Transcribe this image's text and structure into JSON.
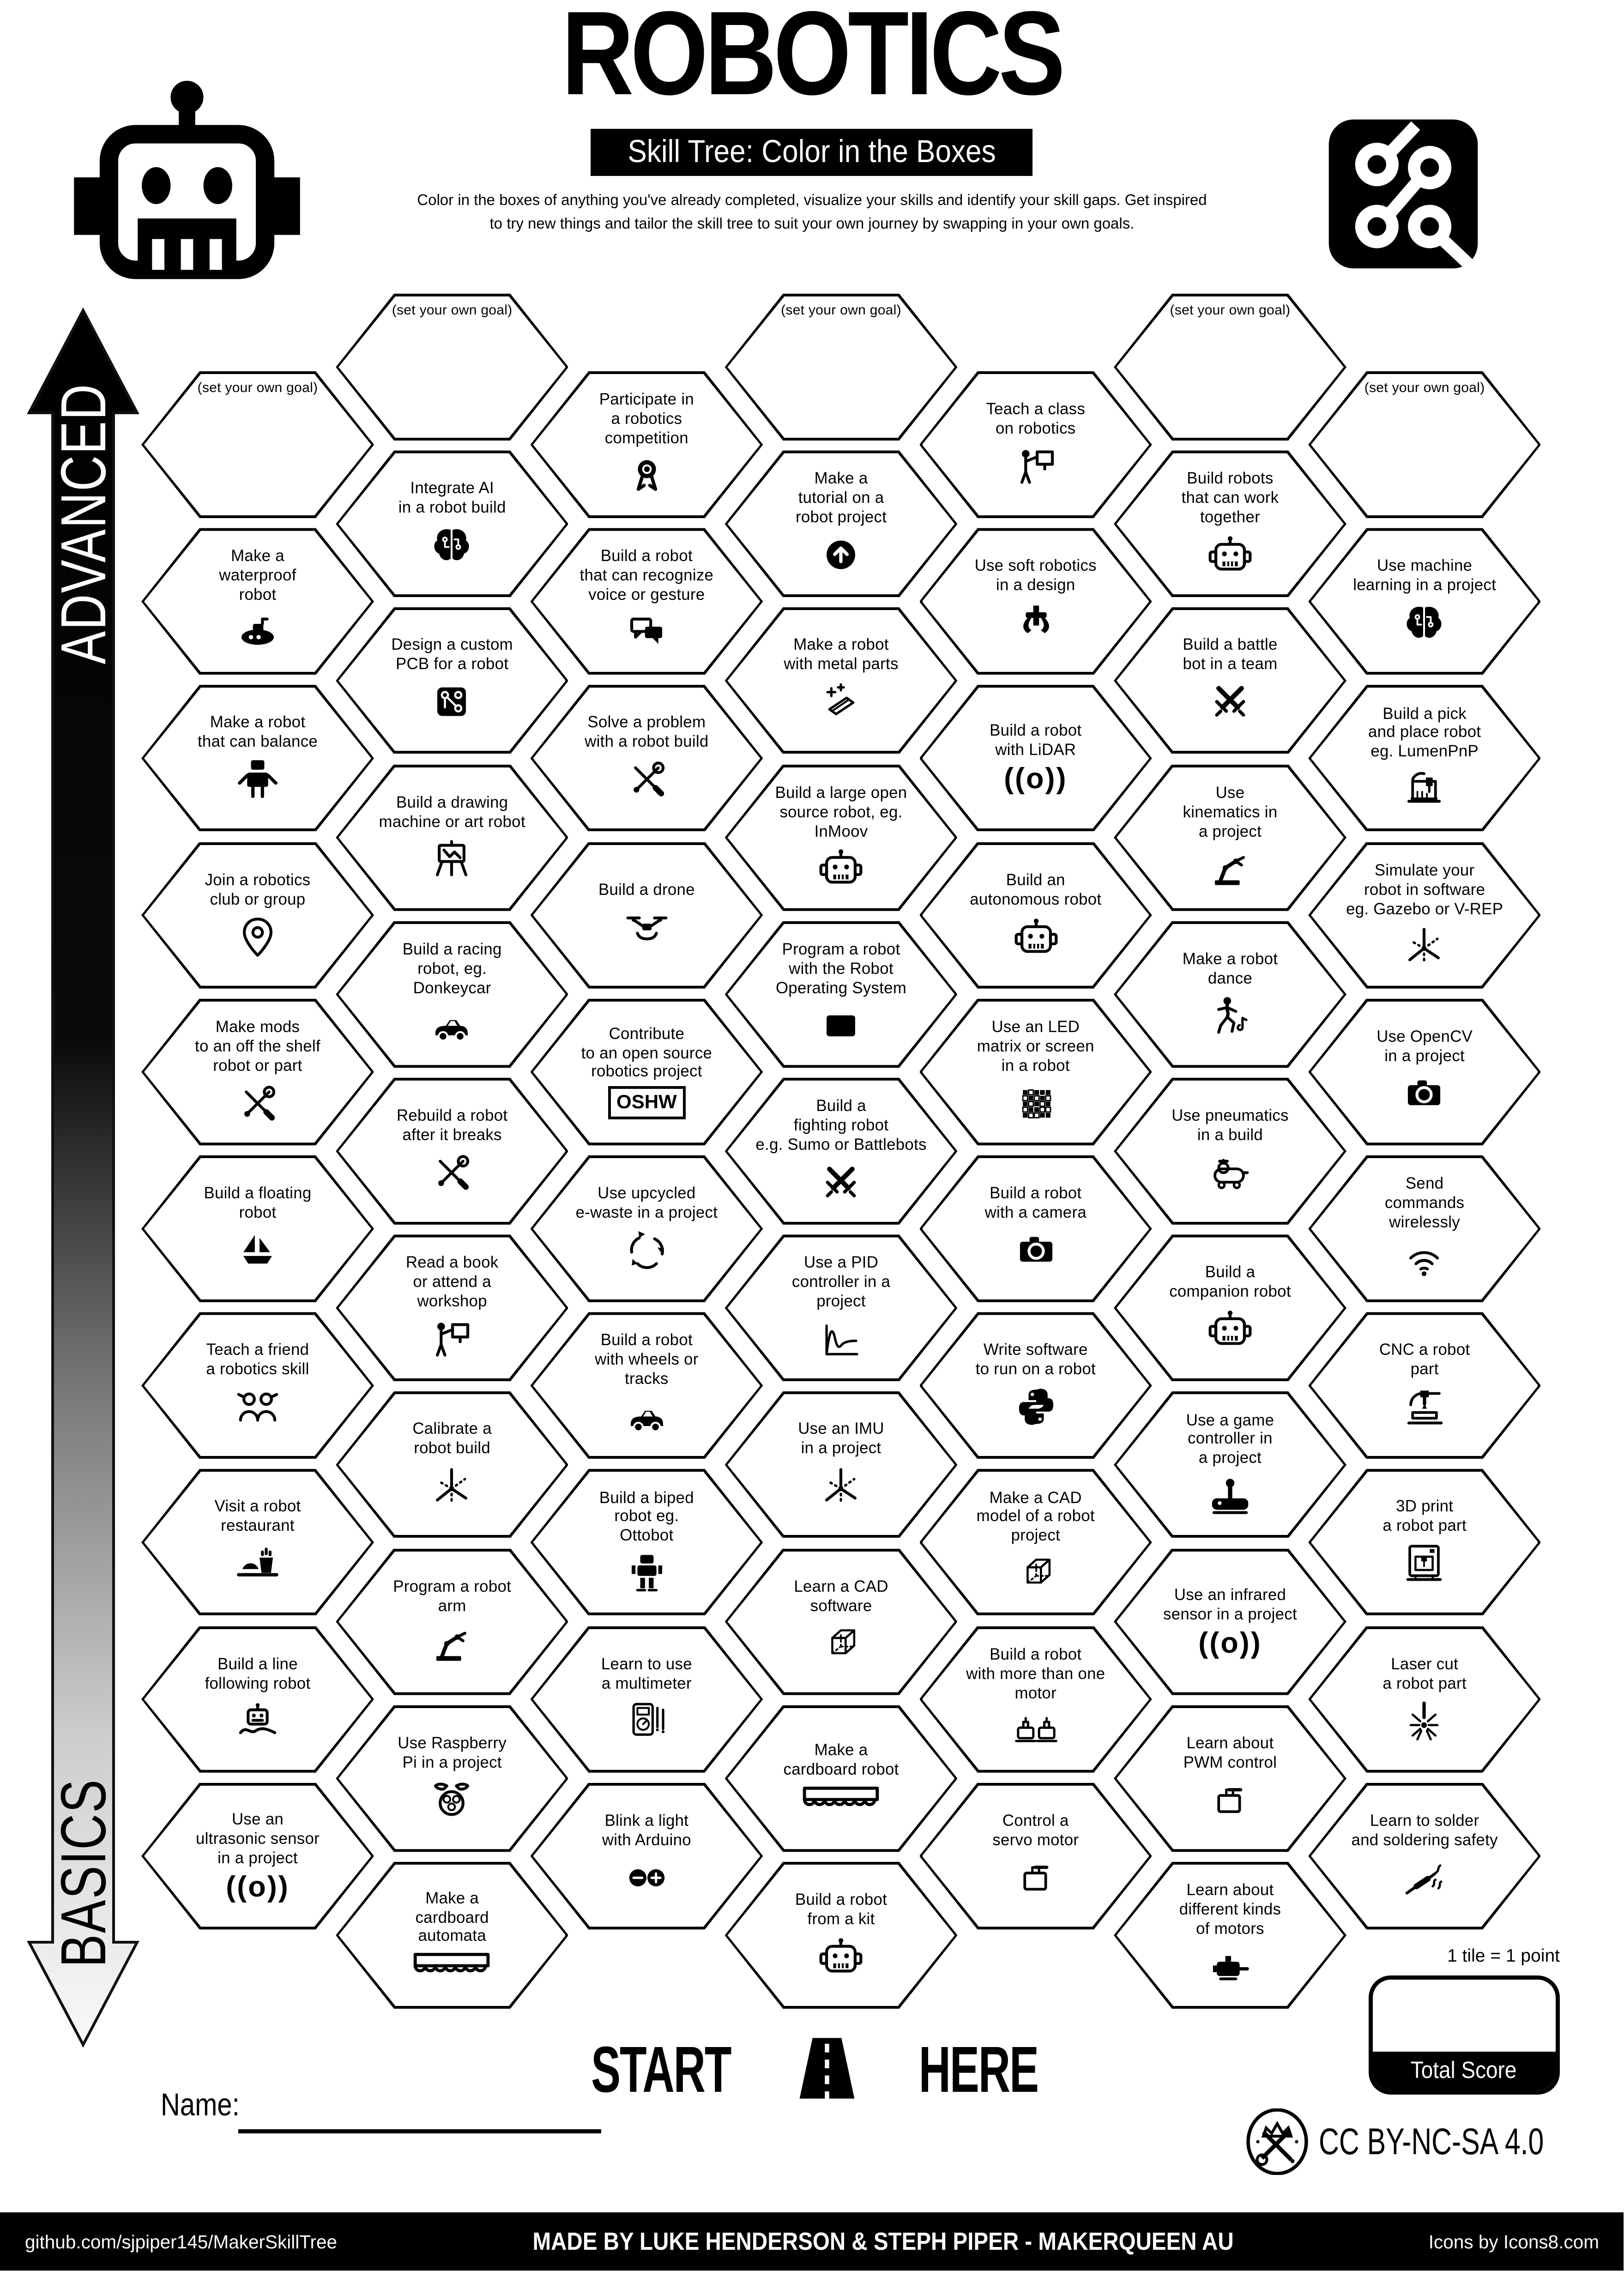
{
  "header": {
    "title": "ROBOTICS",
    "subtitle": "Skill Tree: Color in the Boxes",
    "description": "Color in the boxes of anything you've already completed, visualize your skills and identify your skill gaps.  Get inspired\nto try new things and tailor the skill tree to suit your own journey by swapping in your own goals.",
    "logo_left": "robot-head-icon",
    "logo_right": "circuit-board-icon"
  },
  "axis": {
    "top_label": "ADVANCED",
    "bottom_label": "BASICS"
  },
  "columns": [
    {
      "tiles": [
        {
          "label": "(set your own goal)",
          "goal": true
        },
        {
          "label": "Make a\nwaterproof\nrobot",
          "icon": "submarine"
        },
        {
          "label": "Make a robot\nthat can balance",
          "icon": "robot-body"
        },
        {
          "label": "Join a robotics\nclub or group",
          "icon": "pin"
        },
        {
          "label": "Make mods\nto an off the shelf\nrobot or part",
          "icon": "tools"
        },
        {
          "label": "Build a floating\nrobot",
          "icon": "sailboat"
        },
        {
          "label": "Teach a friend\na robotics skill",
          "icon": "friends"
        },
        {
          "label": "Visit a robot\nrestaurant",
          "icon": "meal"
        },
        {
          "label": "Build a line\nfollowing robot",
          "icon": "line-robot"
        },
        {
          "label": "Use an\nultrasonic sensor\nin a project",
          "icon": "sonar-text"
        }
      ]
    },
    {
      "tiles": [
        {
          "label": "(set your own goal)",
          "goal": true
        },
        {
          "label": "Integrate AI\nin a robot build",
          "icon": "brain"
        },
        {
          "label": "Design a custom\nPCB for a robot",
          "icon": "pcb"
        },
        {
          "label": "Build a drawing\nmachine or art robot",
          "icon": "easel"
        },
        {
          "label": "Build a racing\nrobot, eg.\nDonkeycar",
          "icon": "car"
        },
        {
          "label": "Rebuild a robot\nafter it breaks",
          "icon": "tools"
        },
        {
          "label": "Read a book\nor attend a\nworkshop",
          "icon": "presenter"
        },
        {
          "label": "Calibrate a\nrobot build",
          "icon": "axis"
        },
        {
          "label": "Program a robot\narm",
          "icon": "robot-arm"
        },
        {
          "label": "Use Raspberry\nPi in a project",
          "icon": "raspberry"
        },
        {
          "label": "Make a\ncardboard\nautomata",
          "icon": "cardboard"
        }
      ]
    },
    {
      "tiles": [
        {
          "label": "Participate in\na robotics\ncompetition",
          "icon": "medal"
        },
        {
          "label": "Build a robot\nthat can recognize\nvoice or gesture",
          "icon": "chat"
        },
        {
          "label": "Solve a problem\nwith a robot build",
          "icon": "tools"
        },
        {
          "label": "Build a drone",
          "icon": "drone"
        },
        {
          "label": "Contribute\nto an open source\nrobotics project",
          "icon": "oshw-text"
        },
        {
          "label": "Use upcycled\ne-waste in a project",
          "icon": "recycle"
        },
        {
          "label": "Build a robot\nwith wheels or\ntracks",
          "icon": "car"
        },
        {
          "label": "Build a biped\nrobot eg.\nOttobot",
          "icon": "biped"
        },
        {
          "label": "Learn to use\na multimeter",
          "icon": "multimeter"
        },
        {
          "label": "Blink a light\nwith Arduino",
          "icon": "arduino"
        }
      ]
    },
    {
      "tiles": [
        {
          "label": "(set your own goal)",
          "goal": true
        },
        {
          "label": "Make a\ntutorial on a\nrobot project",
          "icon": "arrow-up"
        },
        {
          "label": "Make a robot\nwith metal parts",
          "icon": "metal"
        },
        {
          "label": "Build a large open\nsource robot, eg.\nInMoov",
          "icon": "robot-head"
        },
        {
          "label": "Program a robot\nwith the Robot\nOperating System",
          "icon": "terminal"
        },
        {
          "label": "Build a\nfighting robot\ne.g. Sumo or Battlebots",
          "icon": "swords"
        },
        {
          "label": "Use a PID\ncontroller in a\nproject",
          "icon": "pid"
        },
        {
          "label": "Use an IMU\nin a project",
          "icon": "axis"
        },
        {
          "label": "Learn a CAD\nsoftware",
          "icon": "cube"
        },
        {
          "label": "Make a\ncardboard robot",
          "icon": "cardboard"
        },
        {
          "label": "Build a robot\nfrom a kit",
          "icon": "robot-head"
        }
      ]
    },
    {
      "tiles": [
        {
          "label": "Teach a class\non robotics",
          "icon": "presenter"
        },
        {
          "label": "Use soft robotics\nin a design",
          "icon": "gripper"
        },
        {
          "label": "Build a robot\nwith LiDAR",
          "icon": "sonar-text"
        },
        {
          "label": "Build an\nautonomous robot",
          "icon": "robot-head"
        },
        {
          "label": "Use an LED\nmatrix or screen\nin a robot",
          "icon": "led"
        },
        {
          "label": "Build a robot\nwith a camera",
          "icon": "camera"
        },
        {
          "label": "Write software\nto run on a robot",
          "icon": "python"
        },
        {
          "label": "Make a CAD\nmodel of a robot\nproject",
          "icon": "cube"
        },
        {
          "label": "Build a robot\nwith more than one\nmotor",
          "icon": "motors-two"
        },
        {
          "label": "Control a\nservo motor",
          "icon": "servo"
        }
      ]
    },
    {
      "tiles": [
        {
          "label": "(set your own goal)",
          "goal": true
        },
        {
          "label": "Build robots\nthat can work\ntogether",
          "icon": "robot-head"
        },
        {
          "label": "Build a battle\nbot in a team",
          "icon": "swords"
        },
        {
          "label": "Use\nkinematics in\na project",
          "icon": "robot-arm"
        },
        {
          "label": "Make a robot\ndance",
          "icon": "dance"
        },
        {
          "label": "Use pneumatics\nin a build",
          "icon": "pneumatic"
        },
        {
          "label": "Build a\ncompanion robot",
          "icon": "robot-head"
        },
        {
          "label": "Use a game\ncontroller in\na project",
          "icon": "gamepad"
        },
        {
          "label": "Use an infrared\nsensor in a project",
          "icon": "sonar-text"
        },
        {
          "label": "Learn about\nPWM control",
          "icon": "servo"
        },
        {
          "label": "Learn about\ndifferent kinds\nof motors",
          "icon": "motor"
        }
      ]
    },
    {
      "tiles": [
        {
          "label": "(set your own goal)",
          "goal": true
        },
        {
          "label": "Use machine\nlearning in a project",
          "icon": "brain"
        },
        {
          "label": "Build a pick\nand place robot\neg. LumenPnP",
          "icon": "pick-place"
        },
        {
          "label": "Simulate your\nrobot in software\neg. Gazebo or V-REP",
          "icon": "axis"
        },
        {
          "label": "Use OpenCV\nin a project",
          "icon": "camera"
        },
        {
          "label": "Send\ncommands\nwirelessly",
          "icon": "wifi"
        },
        {
          "label": "CNC a robot\npart",
          "icon": "cnc"
        },
        {
          "label": "3D print\na robot part",
          "icon": "printer3d"
        },
        {
          "label": "Laser cut\na robot part",
          "icon": "laser"
        },
        {
          "label": "Learn to solder\nand soldering safety",
          "icon": "solder"
        }
      ]
    }
  ],
  "footer": {
    "start_label": "START",
    "here_label": "HERE",
    "name_label": "Name:",
    "tile_point_note": "1 tile = 1 point",
    "total_score_label": "Total Score",
    "license": "CC BY-NC-SA 4.0",
    "credit_left": "github.com/sjpiper145/MakerSkillTree",
    "credit_center": "MADE BY LUKE HENDERSON & STEPH PIPER  -  MAKERQUEEN AU",
    "credit_right": "Icons by Icons8.com"
  },
  "colors": {
    "ink": "#000000",
    "paper": "#ffffff"
  }
}
